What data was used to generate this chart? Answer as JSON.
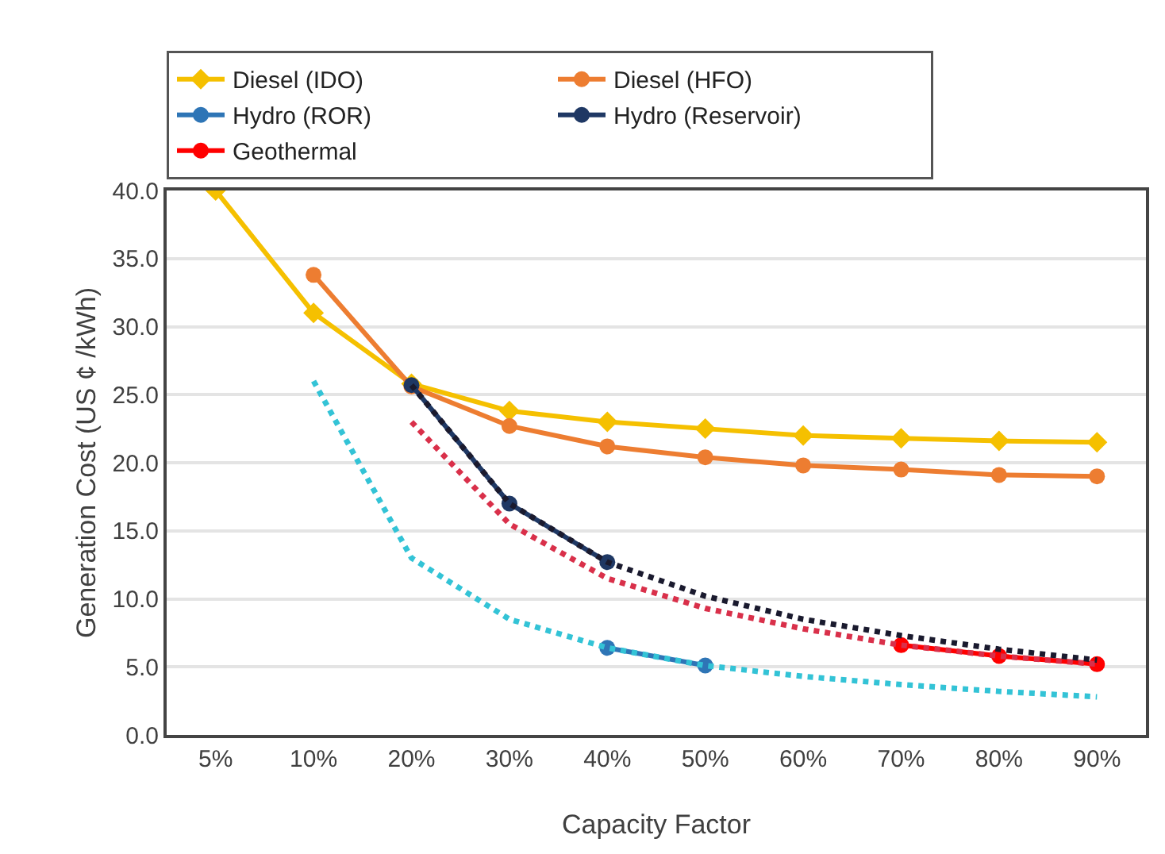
{
  "chart_data": {
    "type": "line",
    "xlabel": "Capacity Factor",
    "ylabel": "Generation Cost (US ¢ /kWh)",
    "categories": [
      "5%",
      "10%",
      "20%",
      "30%",
      "40%",
      "50%",
      "60%",
      "70%",
      "80%",
      "90%"
    ],
    "ylim": [
      0,
      40
    ],
    "yticks": [
      {
        "value": 0,
        "label": "0.0"
      },
      {
        "value": 5,
        "label": "5.0"
      },
      {
        "value": 10,
        "label": "10.0"
      },
      {
        "value": 15,
        "label": "15.0"
      },
      {
        "value": 20,
        "label": "20.0"
      },
      {
        "value": 25,
        "label": "25.0"
      },
      {
        "value": 30,
        "label": "30.0"
      },
      {
        "value": 35,
        "label": "35.0"
      },
      {
        "value": 40,
        "label": "40.0"
      }
    ],
    "grid": "y",
    "legend": "top",
    "series": [
      {
        "name": "Diesel (IDO)",
        "color": "#f5c000",
        "marker": "diamond",
        "line_style": "solid",
        "values": [
          40,
          31,
          25.8,
          23.8,
          23.0,
          22.5,
          22.0,
          21.8,
          21.6,
          21.5
        ]
      },
      {
        "name": "Diesel (HFO)",
        "color": "#ed7d31",
        "marker": "circle",
        "line_style": "solid",
        "values": [
          null,
          33.8,
          25.6,
          22.7,
          21.2,
          20.4,
          19.8,
          19.5,
          19.1,
          19.0
        ]
      },
      {
        "name": "Hydro (ROR)",
        "color": "#2e75b6",
        "marker": "circle",
        "line_style": "solid",
        "values": [
          null,
          null,
          null,
          null,
          6.4,
          5.1,
          null,
          null,
          null,
          null
        ]
      },
      {
        "name": "Hydro (Reservoir)",
        "color": "#1f3864",
        "marker": "circle",
        "line_style": "solid",
        "values": [
          null,
          null,
          25.7,
          17.0,
          12.7,
          null,
          null,
          null,
          null,
          null
        ]
      },
      {
        "name": "Geothermal",
        "color": "#ff0000",
        "marker": "circle",
        "line_style": "solid",
        "values": [
          null,
          null,
          null,
          null,
          null,
          null,
          null,
          6.6,
          5.8,
          5.2
        ]
      },
      {
        "color": "#33c3d6",
        "marker": "none",
        "line_style": "dotted",
        "values": [
          null,
          26,
          13,
          8.5,
          6.4,
          5.1,
          4.3,
          3.7,
          3.2,
          2.8
        ]
      },
      {
        "color": "#d9304a",
        "marker": "none",
        "line_style": "dotted",
        "values": [
          null,
          null,
          23,
          15.5,
          11.5,
          9.3,
          7.8,
          6.6,
          5.8,
          5.2
        ]
      },
      {
        "color": "#1a1a2e",
        "marker": "none",
        "line_style": "dotted",
        "values": [
          null,
          null,
          25.7,
          17.0,
          12.7,
          10.2,
          8.5,
          7.3,
          6.3,
          5.5
        ]
      }
    ]
  }
}
